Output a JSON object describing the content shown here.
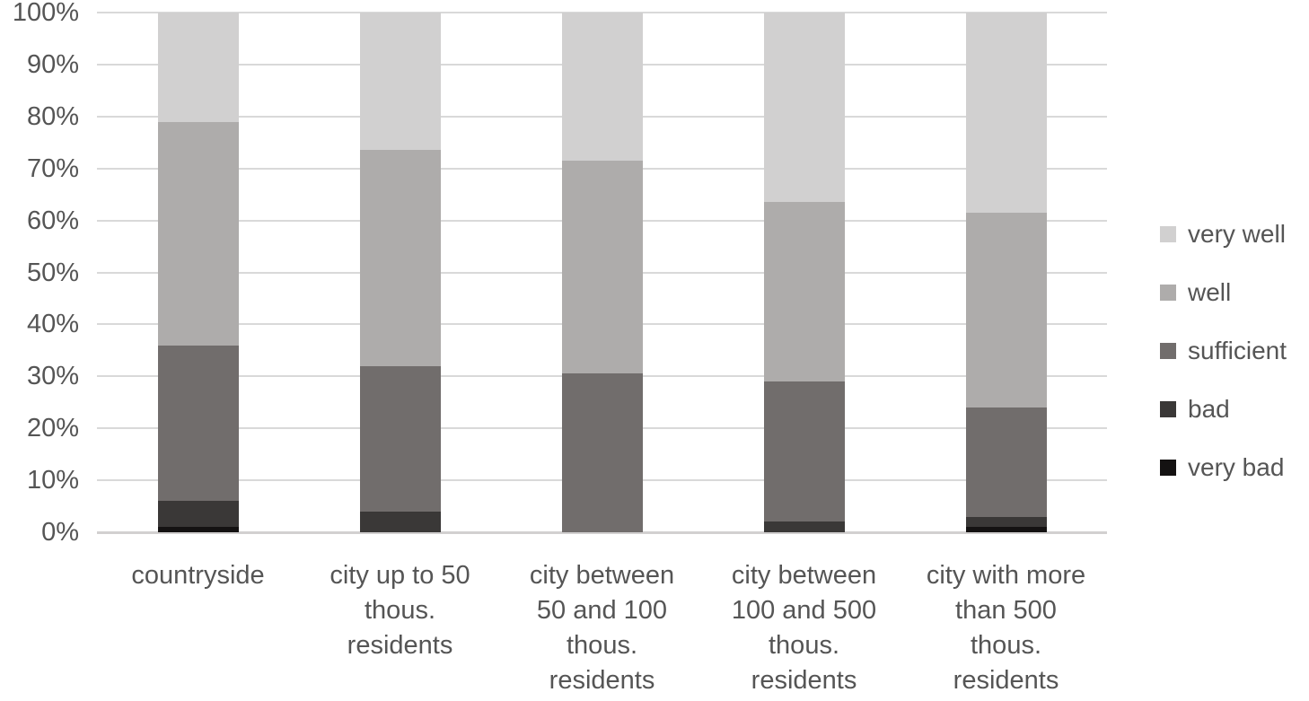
{
  "chart_data": {
    "type": "bar",
    "subtype": "stacked-100-percent",
    "title": "",
    "xlabel": "",
    "ylabel": "",
    "categories": [
      "countryside",
      "city up to 50 thous. residents",
      "city between 50 and 100 thous. residents",
      "city between 100 and 500 thous. residents",
      "city with more than 500 thous. residents"
    ],
    "category_label_lines": [
      [
        "countryside"
      ],
      [
        "city up to 50",
        "thous.",
        "residents"
      ],
      [
        "city between",
        "50 and 100",
        "thous.",
        "residents"
      ],
      [
        "city between",
        "100 and 500",
        "thous.",
        "residents"
      ],
      [
        "city with more",
        "than 500",
        "thous.",
        "residents"
      ]
    ],
    "stack_order": "bottom-to-top",
    "series": [
      {
        "name": "very bad",
        "color": "#141212",
        "values": [
          1,
          0,
          0,
          0,
          1
        ]
      },
      {
        "name": "bad",
        "color": "#3a3837",
        "values": [
          5,
          4,
          0,
          2,
          2
        ]
      },
      {
        "name": "sufficient",
        "color": "#716d6c",
        "values": [
          30,
          28,
          30.5,
          27,
          21
        ]
      },
      {
        "name": "well",
        "color": "#aeacab",
        "values": [
          43,
          41.5,
          41,
          34.5,
          37.5
        ]
      },
      {
        "name": "very well",
        "color": "#d1d0d0",
        "values": [
          21,
          26.5,
          28.5,
          36.5,
          38.5
        ]
      }
    ],
    "y_axis": {
      "min": 0,
      "max": 100,
      "tick_step": 10,
      "tick_labels": [
        "0%",
        "10%",
        "20%",
        "30%",
        "40%",
        "50%",
        "60%",
        "70%",
        "80%",
        "90%",
        "100%"
      ],
      "grid": true
    },
    "legend": {
      "position": "right",
      "order_top_to_bottom": [
        "very well",
        "well",
        "sufficient",
        "bad",
        "very bad"
      ]
    },
    "colors": {
      "gridline": "#d9d9d9",
      "baseline": "#d2d0d0",
      "axis_text": "#555555",
      "background": "#ffffff"
    }
  }
}
